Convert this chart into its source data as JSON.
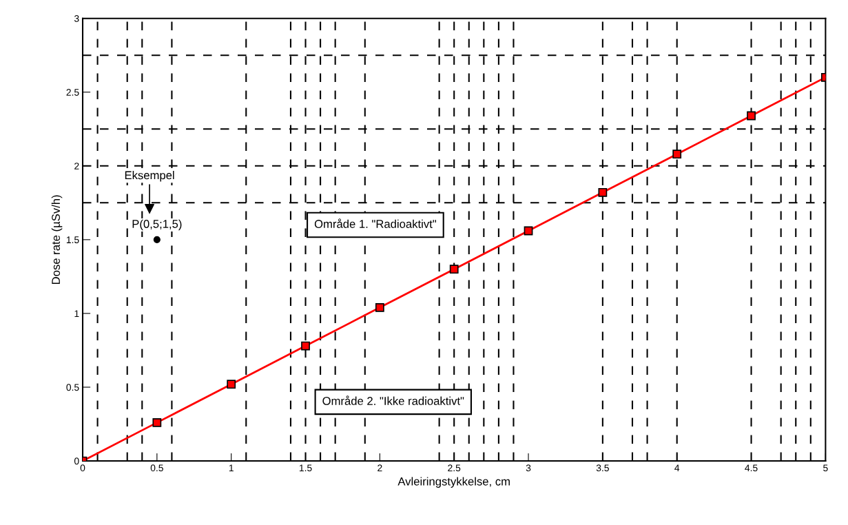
{
  "chart_data": {
    "type": "line",
    "xlabel": "Avleiringstykkelse, cm",
    "ylabel": "Dose rate (µSv/h)",
    "x": [
      0,
      0.5,
      1,
      1.5,
      2,
      2.5,
      3,
      3.5,
      4,
      4.5,
      5
    ],
    "series": [
      {
        "color": "#ff0000",
        "marker": "square",
        "values": [
          0,
          0.26,
          0.52,
          0.78,
          1.04,
          1.3,
          1.56,
          1.82,
          2.08,
          2.34,
          2.6
        ]
      },
      {
        "type": "scatter",
        "x": [
          0.5
        ],
        "color": "#000000",
        "marker": "circle",
        "values": [
          1.5
        ]
      }
    ],
    "xlim": [
      0,
      5
    ],
    "ylim": [
      0,
      3
    ],
    "xticks": [
      0,
      0.5,
      1,
      1.5,
      2,
      2.5,
      3,
      3.5,
      4,
      4.5,
      5
    ],
    "yticks": [
      0,
      0.5,
      1,
      1.5,
      2,
      2.5,
      3
    ],
    "grid": false,
    "legend": false,
    "ref_lines": [
      {
        "axis": "x",
        "value": 0.1,
        "color": "#000000",
        "line_style": "dashed"
      },
      {
        "axis": "x",
        "value": 0.3,
        "color": "#000000",
        "line_style": "dashed"
      },
      {
        "axis": "x",
        "value": 0.4,
        "color": "#000000",
        "line_style": "dashed"
      },
      {
        "axis": "x",
        "value": 0.6,
        "color": "#000000",
        "line_style": "dashed"
      },
      {
        "axis": "x",
        "value": 1.1,
        "color": "#000000",
        "line_style": "dashed"
      },
      {
        "axis": "x",
        "value": 1.4,
        "color": "#000000",
        "line_style": "dashed"
      },
      {
        "axis": "x",
        "value": 1.5,
        "color": "#000000",
        "line_style": "dashed"
      },
      {
        "axis": "x",
        "value": 1.6,
        "color": "#000000",
        "line_style": "dashed"
      },
      {
        "axis": "x",
        "value": 1.7,
        "color": "#000000",
        "line_style": "dashed"
      },
      {
        "axis": "x",
        "value": 1.9,
        "color": "#000000",
        "line_style": "dashed"
      },
      {
        "axis": "x",
        "value": 2.4,
        "color": "#000000",
        "line_style": "dashed"
      },
      {
        "axis": "x",
        "value": 2.5,
        "color": "#000000",
        "line_style": "dashed"
      },
      {
        "axis": "x",
        "value": 2.6,
        "color": "#000000",
        "line_style": "dashed"
      },
      {
        "axis": "x",
        "value": 2.7,
        "color": "#000000",
        "line_style": "dashed"
      },
      {
        "axis": "x",
        "value": 2.8,
        "color": "#000000",
        "line_style": "dashed"
      },
      {
        "axis": "x",
        "value": 2.9,
        "color": "#000000",
        "line_style": "dashed"
      },
      {
        "axis": "x",
        "value": 3.5,
        "color": "#000000",
        "line_style": "dashed"
      },
      {
        "axis": "x",
        "value": 3.7,
        "color": "#000000",
        "line_style": "dashed"
      },
      {
        "axis": "x",
        "value": 3.8,
        "color": "#000000",
        "line_style": "dashed"
      },
      {
        "axis": "x",
        "value": 4,
        "color": "#000000",
        "line_style": "dashed"
      },
      {
        "axis": "x",
        "value": 4.5,
        "color": "#000000",
        "line_style": "dashed"
      },
      {
        "axis": "x",
        "value": 4.7,
        "color": "#000000",
        "line_style": "dashed"
      },
      {
        "axis": "x",
        "value": 4.8,
        "color": "#000000",
        "line_style": "dashed"
      },
      {
        "axis": "x",
        "value": 4.9,
        "color": "#000000",
        "line_style": "dashed"
      },
      {
        "axis": "y",
        "value": 1.75,
        "color": "#000000",
        "line_style": "dashed"
      },
      {
        "axis": "y",
        "value": 2,
        "color": "#000000",
        "line_style": "dashed"
      },
      {
        "axis": "y",
        "value": 2.25,
        "color": "#000000",
        "line_style": "dashed"
      },
      {
        "axis": "y",
        "value": 2.75,
        "color": "#000000",
        "line_style": "dashed"
      }
    ],
    "annotations": [
      "Eksempel",
      "P(0,5;1,5)",
      "Område 1. \"Radioaktivt\"",
      "Område 2. \"Ikke radioaktivt\""
    ]
  }
}
